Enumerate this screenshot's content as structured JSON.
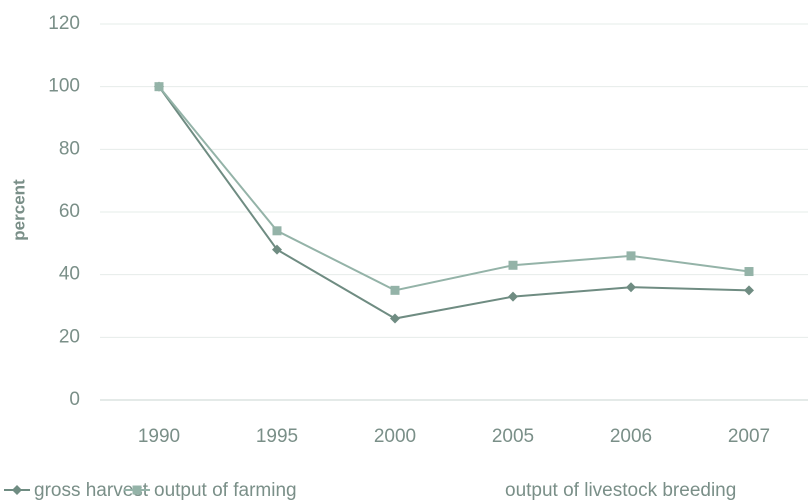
{
  "chart_data": {
    "type": "line",
    "y_label": "percent",
    "categories": [
      "1990",
      "1995",
      "2000",
      "2005",
      "2006",
      "2007"
    ],
    "series": [
      {
        "name": "gross harvest",
        "color": "#6f8c82",
        "marker": "diamond",
        "values": [
          100,
          48,
          26,
          33,
          36,
          35
        ]
      },
      {
        "name": "output of farming",
        "color": "#94b3a8",
        "marker": "square",
        "values": [
          100,
          54,
          35,
          43,
          46,
          41
        ]
      },
      {
        "name": "output of livestock breeding",
        "color": "#e4ece9",
        "marker": "none",
        "values": [
          null,
          null,
          null,
          null,
          null,
          null
        ]
      }
    ],
    "ylim": [
      0,
      120
    ],
    "yticks": [
      0,
      20,
      40,
      60,
      80,
      100,
      120
    ],
    "grid": true
  }
}
